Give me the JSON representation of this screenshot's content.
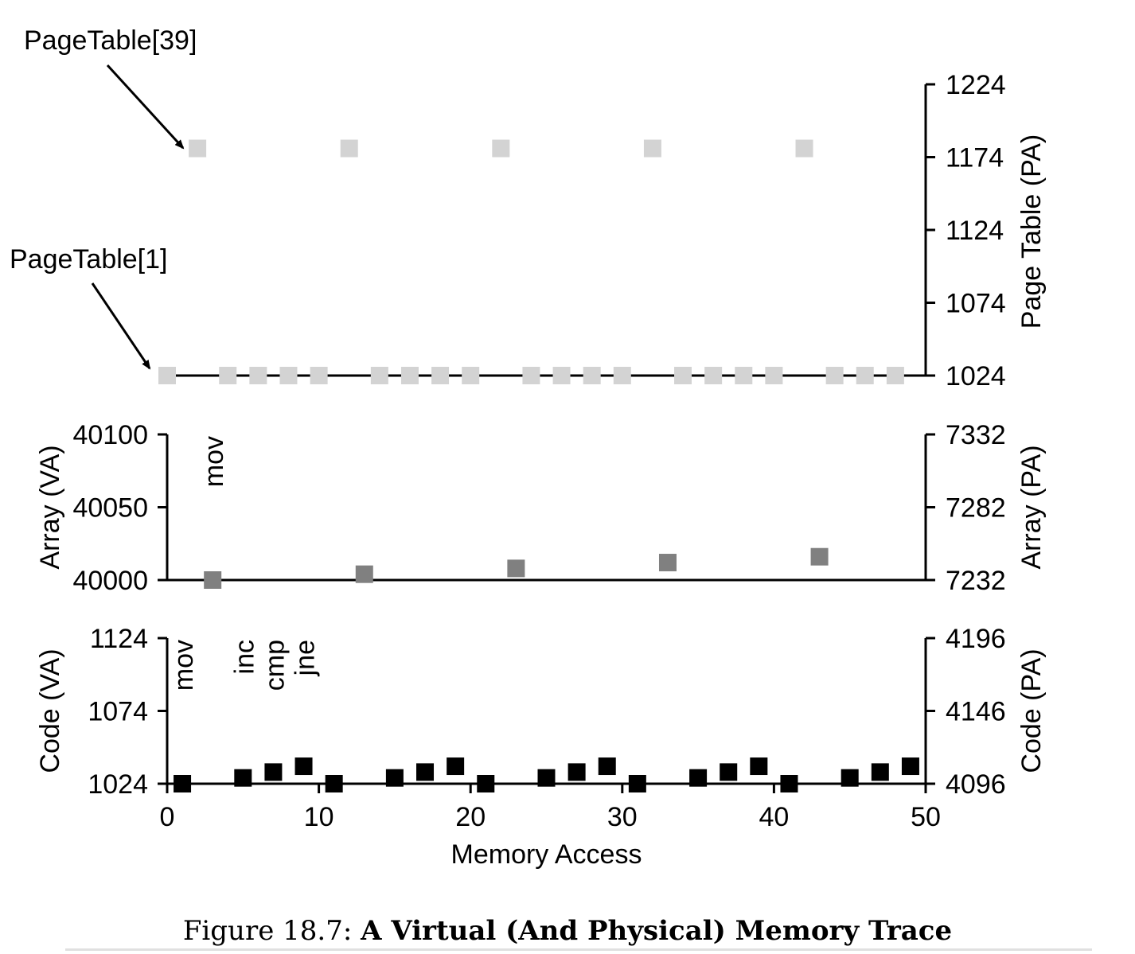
{
  "caption": {
    "prefix": "Figure 18.7:",
    "title": "A Virtual (And Physical) Memory Trace"
  },
  "annotations": {
    "pt39": "PageTable[39]",
    "pt1": "PageTable[1]"
  },
  "chart_data": [
    {
      "type": "scatter",
      "panel": "page-table",
      "ylabel_right": "Page Table (PA)",
      "ylim": [
        1024,
        1224
      ],
      "yticks": [
        1024,
        1074,
        1124,
        1174,
        1224
      ],
      "xlim": [
        0,
        50
      ],
      "color": "#d3d3d3",
      "series": [
        {
          "points": [
            [
              0,
              1024
            ],
            [
              2,
              1180
            ],
            [
              4,
              1024
            ],
            [
              6,
              1024
            ],
            [
              8,
              1024
            ],
            [
              10,
              1024
            ],
            [
              12,
              1180
            ],
            [
              14,
              1024
            ],
            [
              16,
              1024
            ],
            [
              18,
              1024
            ],
            [
              20,
              1024
            ],
            [
              22,
              1180
            ],
            [
              24,
              1024
            ],
            [
              26,
              1024
            ],
            [
              28,
              1024
            ],
            [
              30,
              1024
            ],
            [
              32,
              1180
            ],
            [
              34,
              1024
            ],
            [
              36,
              1024
            ],
            [
              38,
              1024
            ],
            [
              40,
              1024
            ],
            [
              42,
              1180
            ],
            [
              44,
              1024
            ],
            [
              46,
              1024
            ],
            [
              48,
              1024
            ]
          ]
        }
      ]
    },
    {
      "type": "scatter",
      "panel": "array",
      "ylabel_left": "Array (VA)",
      "ylabel_right": "Array (PA)",
      "ylim_left": [
        40000,
        40100
      ],
      "yticks_left": [
        40000,
        40050,
        40100
      ],
      "ylim_right": [
        7232,
        7332
      ],
      "yticks_right": [
        7232,
        7282,
        7332
      ],
      "xlim": [
        0,
        50
      ],
      "color": "#808080",
      "instruction_labels": [
        {
          "text": "mov",
          "x": 3
        }
      ],
      "series": [
        {
          "points": [
            [
              3,
              40000
            ],
            [
              13,
              40004
            ],
            [
              23,
              40008
            ],
            [
              33,
              40012
            ],
            [
              43,
              40016
            ]
          ]
        }
      ]
    },
    {
      "type": "scatter",
      "panel": "code",
      "ylabel_left": "Code (VA)",
      "ylabel_right": "Code (PA)",
      "xlabel": "Memory Access",
      "ylim_left": [
        1024,
        1124
      ],
      "yticks_left": [
        1024,
        1074,
        1124
      ],
      "ylim_right": [
        4096,
        4196
      ],
      "yticks_right": [
        4096,
        4146,
        4196
      ],
      "xlim": [
        0,
        50
      ],
      "xticks": [
        0,
        10,
        20,
        30,
        40,
        50
      ],
      "color": "#000000",
      "instruction_labels": [
        {
          "text": "mov",
          "x": 1
        },
        {
          "text": "inc",
          "x": 5
        },
        {
          "text": "cmp",
          "x": 7
        },
        {
          "text": "jne",
          "x": 9
        }
      ],
      "series": [
        {
          "points": [
            [
              1,
              1024
            ],
            [
              5,
              1028
            ],
            [
              7,
              1032
            ],
            [
              9,
              1036
            ],
            [
              11,
              1024
            ],
            [
              15,
              1028
            ],
            [
              17,
              1032
            ],
            [
              19,
              1036
            ],
            [
              21,
              1024
            ],
            [
              25,
              1028
            ],
            [
              27,
              1032
            ],
            [
              29,
              1036
            ],
            [
              31,
              1024
            ],
            [
              35,
              1028
            ],
            [
              37,
              1032
            ],
            [
              39,
              1036
            ],
            [
              41,
              1024
            ],
            [
              45,
              1028
            ],
            [
              47,
              1032
            ],
            [
              49,
              1036
            ]
          ]
        }
      ]
    }
  ]
}
